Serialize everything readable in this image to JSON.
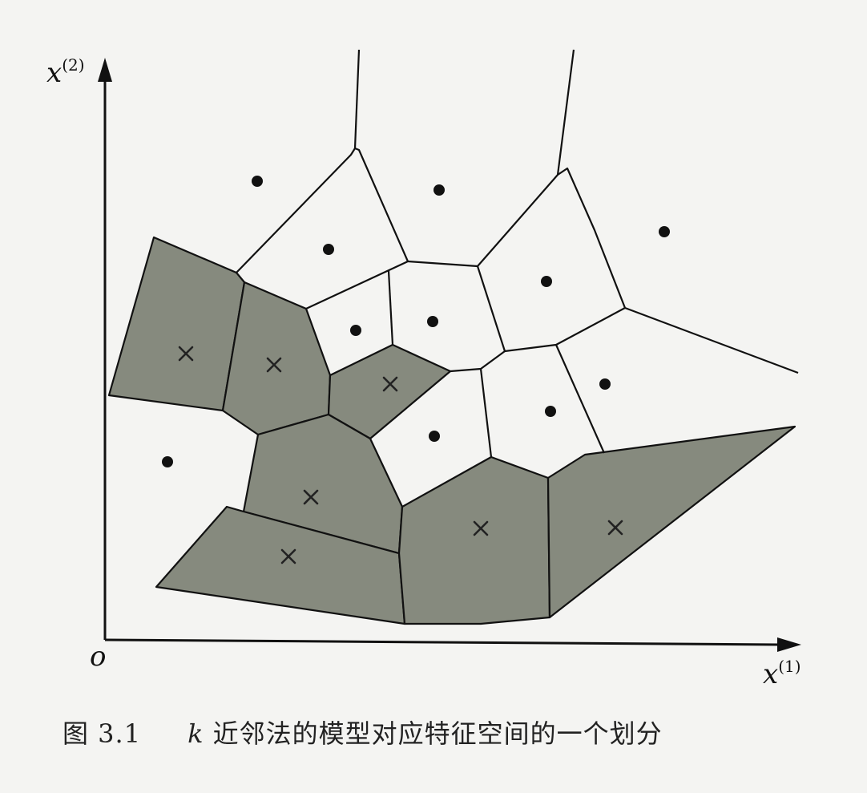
{
  "axes": {
    "y_label_base": "x",
    "y_label_sup": "(2)",
    "x_label_base": "x",
    "x_label_sup": "(1)",
    "origin_label": "o"
  },
  "caption": {
    "figure_number": "图 3.1",
    "var": "k",
    "text": " 近邻法的模型对应特征空间的一个划分"
  },
  "legend_semantics": {
    "dot": "instance of one class (white regions)",
    "cross": "instance of other class (gray regions)"
  },
  "colors": {
    "gray_region": "#868a7e",
    "lines": "#111111",
    "background": "#f4f4f2"
  }
}
